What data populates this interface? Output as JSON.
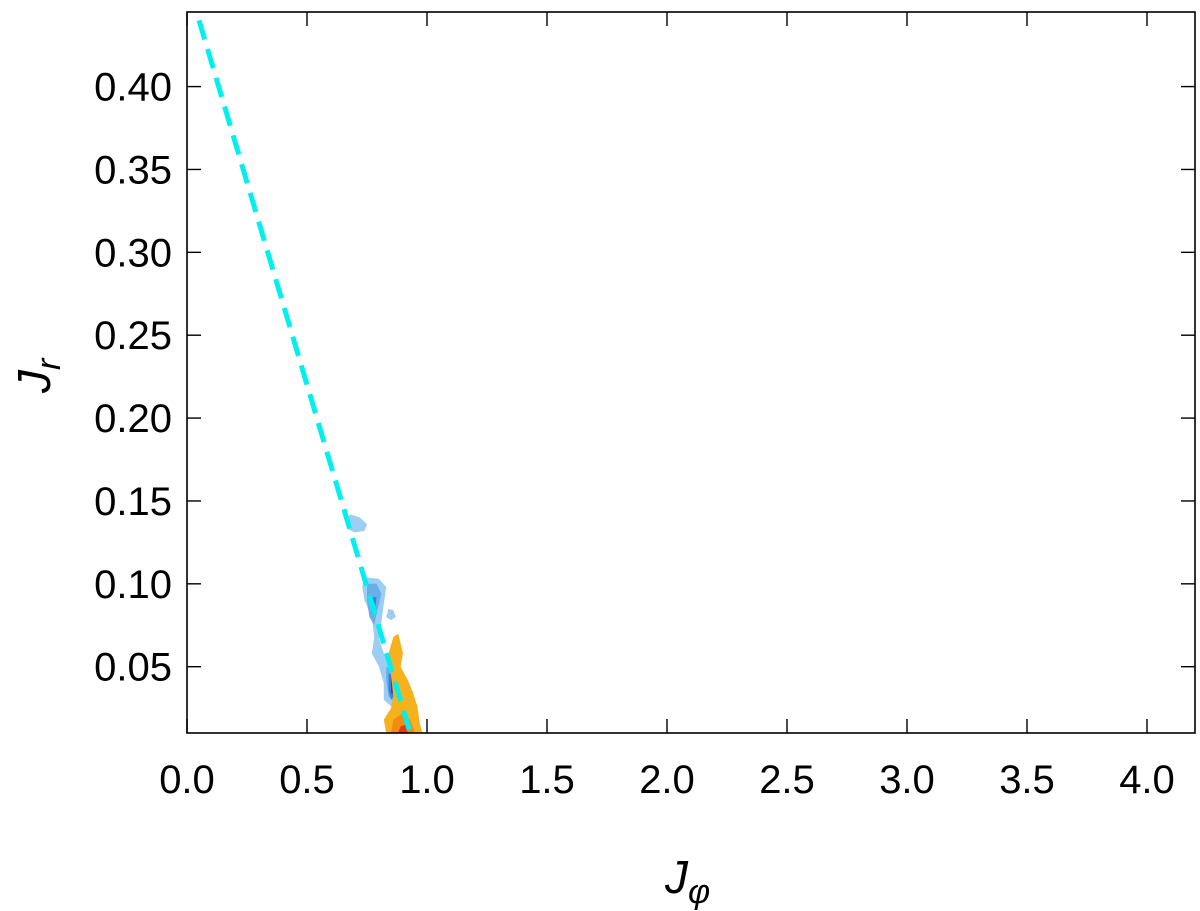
{
  "chart_data": {
    "type": "contour",
    "title": "",
    "xlabel": "J",
    "xlabel_sub": "φ",
    "ylabel": "J",
    "ylabel_sub": "r",
    "xlim": [
      0.0,
      4.2
    ],
    "ylim": [
      0.01,
      0.445
    ],
    "xticks": [
      0.0,
      0.5,
      1.0,
      1.5,
      2.0,
      2.5,
      3.0,
      3.5,
      4.0
    ],
    "xtick_labels": [
      "0.0",
      "0.5",
      "1.0",
      "1.5",
      "2.0",
      "2.5",
      "3.0",
      "3.5",
      "4.0"
    ],
    "yticks": [
      0.05,
      0.1,
      0.15,
      0.2,
      0.25,
      0.3,
      0.35,
      0.4
    ],
    "ytick_labels": [
      "0.05",
      "0.10",
      "0.15",
      "0.20",
      "0.25",
      "0.30",
      "0.35",
      "0.40"
    ],
    "grid": false,
    "colors": {
      "reference_line": "#00f0f0",
      "blue_outer": "#9dcdf2",
      "blue_mid": "#6aaee8",
      "blue_inner": "#3b7fd8",
      "blue_core": "#1f4fb8",
      "orange_outer": "#f5b21c",
      "orange_inner": "#f08c10",
      "red_core": "#e03a1a"
    },
    "reference_line": {
      "style": "dashed",
      "points": [
        [
          0.05,
          0.44
        ],
        [
          0.93,
          0.01
        ]
      ]
    },
    "contour_groups": [
      {
        "population": "blue",
        "regions": [
          {
            "level": "outer",
            "points": [
              [
                0.66,
                0.138
              ],
              [
                0.68,
                0.142
              ],
              [
                0.72,
                0.14
              ],
              [
                0.75,
                0.136
              ],
              [
                0.74,
                0.132
              ],
              [
                0.7,
                0.131
              ],
              [
                0.67,
                0.133
              ]
            ]
          },
          {
            "level": "outer",
            "points": [
              [
                0.74,
                0.104
              ],
              [
                0.8,
                0.103
              ],
              [
                0.83,
                0.098
              ],
              [
                0.82,
                0.088
              ],
              [
                0.81,
                0.077
              ],
              [
                0.8,
                0.067
              ],
              [
                0.82,
                0.058
              ],
              [
                0.86,
                0.052
              ],
              [
                0.9,
                0.046
              ],
              [
                0.91,
                0.036
              ],
              [
                0.9,
                0.028
              ],
              [
                0.86,
                0.025
              ],
              [
                0.82,
                0.03
              ],
              [
                0.82,
                0.04
              ],
              [
                0.8,
                0.05
              ],
              [
                0.77,
                0.058
              ],
              [
                0.78,
                0.068
              ],
              [
                0.77,
                0.08
              ],
              [
                0.74,
                0.09
              ],
              [
                0.73,
                0.098
              ]
            ]
          },
          {
            "level": "outer",
            "points": [
              [
                0.84,
                0.085
              ],
              [
                0.86,
                0.084
              ],
              [
                0.87,
                0.08
              ],
              [
                0.85,
                0.078
              ],
              [
                0.83,
                0.08
              ]
            ]
          },
          {
            "level": "mid",
            "points": [
              [
                0.75,
                0.1
              ],
              [
                0.79,
                0.1
              ],
              [
                0.81,
                0.094
              ],
              [
                0.79,
                0.082
              ],
              [
                0.78,
                0.075
              ],
              [
                0.76,
                0.08
              ],
              [
                0.75,
                0.09
              ]
            ]
          },
          {
            "level": "mid",
            "points": [
              [
                0.83,
                0.05
              ],
              [
                0.88,
                0.046
              ],
              [
                0.89,
                0.036
              ],
              [
                0.87,
                0.028
              ],
              [
                0.84,
                0.032
              ],
              [
                0.83,
                0.042
              ]
            ]
          },
          {
            "level": "inner",
            "points": [
              [
                0.76,
                0.092
              ],
              [
                0.79,
                0.092
              ],
              [
                0.78,
                0.082
              ],
              [
                0.77,
                0.082
              ]
            ]
          },
          {
            "level": "inner",
            "points": [
              [
                0.84,
                0.046
              ],
              [
                0.87,
                0.044
              ],
              [
                0.87,
                0.034
              ],
              [
                0.85,
                0.03
              ],
              [
                0.84,
                0.036
              ]
            ]
          },
          {
            "level": "core",
            "points": [
              [
                0.85,
                0.043
              ],
              [
                0.86,
                0.043
              ],
              [
                0.86,
                0.034
              ],
              [
                0.85,
                0.034
              ]
            ]
          }
        ]
      },
      {
        "population": "orange",
        "regions": [
          {
            "level": "outer",
            "points": [
              [
                0.84,
                0.058
              ],
              [
                0.86,
                0.068
              ],
              [
                0.88,
                0.07
              ],
              [
                0.9,
                0.058
              ],
              [
                0.89,
                0.05
              ],
              [
                0.92,
                0.042
              ],
              [
                0.94,
                0.035
              ],
              [
                0.96,
                0.026
              ],
              [
                0.97,
                0.016
              ],
              [
                0.98,
                0.01
              ],
              [
                0.83,
                0.01
              ],
              [
                0.82,
                0.018
              ],
              [
                0.85,
                0.025
              ],
              [
                0.86,
                0.032
              ],
              [
                0.85,
                0.045
              ]
            ]
          },
          {
            "level": "inner",
            "points": [
              [
                0.86,
                0.018
              ],
              [
                0.9,
                0.022
              ],
              [
                0.93,
                0.018
              ],
              [
                0.95,
                0.01
              ],
              [
                0.85,
                0.01
              ]
            ]
          },
          {
            "level": "core",
            "points": [
              [
                0.89,
                0.014
              ],
              [
                0.91,
                0.015
              ],
              [
                0.92,
                0.01
              ],
              [
                0.88,
                0.01
              ]
            ]
          }
        ]
      }
    ]
  }
}
